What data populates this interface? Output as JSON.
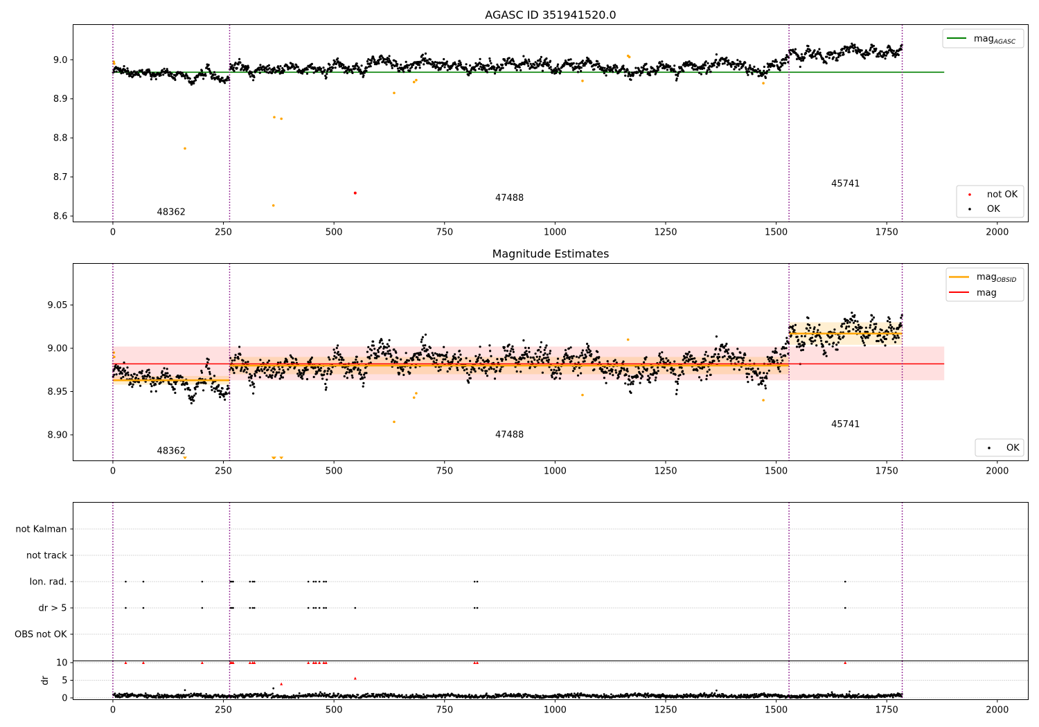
{
  "chart_data": [
    {
      "type": "scatter",
      "title": "AGASC ID 351941520.0",
      "xlim": [
        -90,
        2070
      ],
      "ylim": [
        8.585,
        9.09
      ],
      "xticks": [
        0,
        250,
        500,
        750,
        1000,
        1250,
        1500,
        1750,
        2000
      ],
      "yticks": [
        8.6,
        8.7,
        8.8,
        8.9,
        9.0
      ],
      "ytick_labels": [
        "8.6",
        "8.7",
        "8.8",
        "8.9",
        "9.0"
      ],
      "obs_boundaries": [
        0,
        264,
        1529,
        1785
      ],
      "obs_labels": [
        {
          "text": "48362",
          "x": 132,
          "y": 8.603
        },
        {
          "text": "47488",
          "x": 897,
          "y": 8.639
        },
        {
          "text": "45741",
          "x": 1657,
          "y": 8.675
        }
      ],
      "segments": [
        {
          "x0": 0,
          "x1": 264,
          "mean": 8.962,
          "noise": 0.007
        },
        {
          "x0": 264,
          "x1": 1529,
          "mean": 8.981,
          "noise": 0.009
        },
        {
          "x0": 1529,
          "x1": 1785,
          "mean": 9.019,
          "noise": 0.009
        }
      ],
      "lines": [
        {
          "name": "mag$_{AGASC}$",
          "y": 8.968,
          "x0": -2,
          "x1": 1880,
          "color": "#008000"
        }
      ],
      "outliers_orange": [
        {
          "x": 2,
          "y": 8.995
        },
        {
          "x": 3,
          "y": 8.99
        },
        {
          "x": 163,
          "y": 8.773
        },
        {
          "x": 365,
          "y": 8.853
        },
        {
          "x": 363,
          "y": 8.627
        },
        {
          "x": 381,
          "y": 8.849
        },
        {
          "x": 636,
          "y": 8.915
        },
        {
          "x": 681,
          "y": 8.943
        },
        {
          "x": 686,
          "y": 8.948
        },
        {
          "x": 1062,
          "y": 8.946
        },
        {
          "x": 1165,
          "y": 9.01
        },
        {
          "x": 1168,
          "y": 9.007
        },
        {
          "x": 1471,
          "y": 8.94
        }
      ],
      "series": [
        {
          "name": "not OK",
          "color": "#ff0000",
          "points": [
            {
              "x": 548,
              "y": 8.659
            }
          ]
        },
        {
          "name": "OK",
          "color": "#000000"
        }
      ],
      "legend_top": [
        "mag$_{AGASC}$"
      ],
      "legend_bottom": [
        "not OK",
        "OK"
      ],
      "legend_location": "top-right / bottom-right"
    },
    {
      "type": "scatter",
      "title": "Magnitude Estimates",
      "xlim": [
        -90,
        2070
      ],
      "ylim": [
        8.87,
        9.098
      ],
      "xticks": [
        0,
        250,
        500,
        750,
        1000,
        1250,
        1500,
        1750,
        2000
      ],
      "yticks": [
        8.9,
        8.95,
        9.0,
        9.05
      ],
      "ytick_labels": [
        "8.90",
        "8.95",
        "9.00",
        "9.05"
      ],
      "obs_boundaries": [
        0,
        264,
        1529,
        1785
      ],
      "obs_labels": [
        {
          "text": "48362",
          "x": 132,
          "y": 8.878
        },
        {
          "text": "47488",
          "x": 897,
          "y": 8.897
        },
        {
          "text": "45741",
          "x": 1657,
          "y": 8.909
        }
      ],
      "mag": {
        "name": "mag",
        "y": 8.982,
        "band": [
          8.963,
          9.002
        ],
        "x0": -2,
        "x1": 1880,
        "color": "#ff0000"
      },
      "mag_obsid": [
        {
          "x0": 0,
          "x1": 264,
          "y": 8.963,
          "band": [
            8.958,
            8.968
          ]
        },
        {
          "x0": 264,
          "x1": 1529,
          "y": 8.98,
          "band": [
            8.97,
            8.99
          ]
        },
        {
          "x0": 1529,
          "x1": 1785,
          "y": 9.017,
          "band": [
            9.004,
            9.03
          ]
        }
      ],
      "outliers_orange": [
        {
          "x": 2,
          "y": 8.995
        },
        {
          "x": 3,
          "y": 8.99
        },
        {
          "x": 636,
          "y": 8.915
        },
        {
          "x": 681,
          "y": 8.943
        },
        {
          "x": 686,
          "y": 8.948
        },
        {
          "x": 1062,
          "y": 8.946
        },
        {
          "x": 1165,
          "y": 9.01
        },
        {
          "x": 1471,
          "y": 8.94
        }
      ],
      "offscale_markers": [
        163,
        363,
        365,
        381
      ],
      "series": [
        {
          "name": "mag$_{OBSID}$",
          "color": "#ffa500"
        },
        {
          "name": "mag",
          "color": "#ff0000"
        },
        {
          "name": "OK",
          "color": "#000000"
        }
      ],
      "legend_top": [
        "mag$_{OBSID}$",
        "mag"
      ],
      "legend_bottom": [
        "OK"
      ]
    },
    {
      "type": "scatter",
      "title": "",
      "xlim": [
        -90,
        2070
      ],
      "categories": [
        "not Kalman",
        "not track",
        "Ion. rad.",
        "dr > 5",
        "OBS not OK"
      ],
      "flag_points": {
        "Ion. rad.": [
          29,
          69,
          202,
          266,
          269,
          272,
          310,
          316,
          320,
          442,
          454,
          459,
          467,
          477,
          482,
          818,
          824,
          1656
        ],
        "dr > 5": [
          29,
          69,
          202,
          266,
          269,
          272,
          310,
          316,
          320,
          442,
          454,
          459,
          467,
          477,
          482,
          548,
          818,
          824,
          1656
        ]
      },
      "obs_boundaries": [
        0,
        264,
        1529,
        1785
      ]
    },
    {
      "type": "scatter",
      "xlim": [
        -90,
        2070
      ],
      "ylabel": "dr",
      "ylim": [
        -0.5,
        10.5
      ],
      "yticks": [
        0,
        5,
        10
      ],
      "ytick_labels": [
        "0",
        "5",
        "10"
      ],
      "xticks": [
        0,
        250,
        500,
        750,
        1000,
        1250,
        1500,
        1750,
        2000
      ],
      "dr_red": [
        {
          "x": 29,
          "y": 10
        },
        {
          "x": 69,
          "y": 10
        },
        {
          "x": 202,
          "y": 10
        },
        {
          "x": 266,
          "y": 10
        },
        {
          "x": 269,
          "y": 10
        },
        {
          "x": 272,
          "y": 10
        },
        {
          "x": 310,
          "y": 10
        },
        {
          "x": 316,
          "y": 10
        },
        {
          "x": 320,
          "y": 10
        },
        {
          "x": 442,
          "y": 10
        },
        {
          "x": 454,
          "y": 10
        },
        {
          "x": 459,
          "y": 10
        },
        {
          "x": 467,
          "y": 10
        },
        {
          "x": 477,
          "y": 10
        },
        {
          "x": 482,
          "y": 10
        },
        {
          "x": 818,
          "y": 10
        },
        {
          "x": 824,
          "y": 10
        },
        {
          "x": 1656,
          "y": 10
        },
        {
          "x": 548,
          "y": 5.6
        },
        {
          "x": 381,
          "y": 4.0
        }
      ],
      "dr_spikes": [
        {
          "x": 163,
          "y": 2.2
        },
        {
          "x": 363,
          "y": 2.7
        },
        {
          "x": 1365,
          "y": 2.1
        },
        {
          "x": 1666,
          "y": 1.8
        }
      ],
      "obs_boundaries": [
        0,
        264,
        1529,
        1785
      ]
    }
  ]
}
